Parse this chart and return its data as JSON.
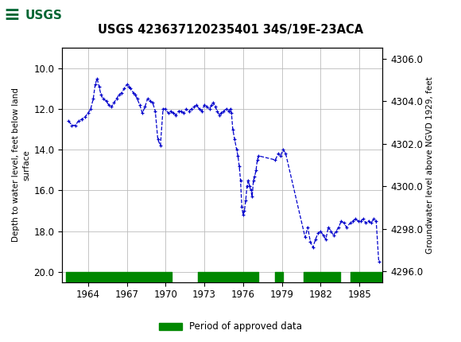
{
  "title": "USGS 423637120235401 34S/19E-23ACA",
  "ylabel_left": "Depth to water level, feet below land\nsurface",
  "ylabel_right": "Groundwater level above NGVD 1929, feet",
  "ylim_left": [
    20.5,
    9.0
  ],
  "ylim_right": [
    4295.5,
    4306.5
  ],
  "yticks_left": [
    10.0,
    12.0,
    14.0,
    16.0,
    18.0,
    20.0
  ],
  "yticks_right": [
    4296.0,
    4298.0,
    4300.0,
    4302.0,
    4304.0,
    4306.0
  ],
  "xlim": [
    1962.0,
    1986.8
  ],
  "xticks": [
    1964,
    1967,
    1970,
    1973,
    1976,
    1979,
    1982,
    1985
  ],
  "line_color": "#0000cc",
  "marker": "+",
  "linestyle": "--",
  "bg_color": "#ffffff",
  "header_color": "#006633",
  "grid_color": "#bbbbbb",
  "approved_color": "#008800",
  "legend_label": "Period of approved data",
  "approved_segments": [
    [
      1962.3,
      1970.5
    ],
    [
      1972.5,
      1977.2
    ],
    [
      1978.5,
      1979.1
    ],
    [
      1980.7,
      1983.5
    ],
    [
      1984.3,
      1986.8
    ]
  ],
  "data_x": [
    1962.5,
    1962.75,
    1963.0,
    1963.25,
    1963.5,
    1963.75,
    1964.0,
    1964.2,
    1964.4,
    1964.55,
    1964.7,
    1964.85,
    1965.0,
    1965.15,
    1965.4,
    1965.6,
    1965.8,
    1966.0,
    1966.2,
    1966.4,
    1966.6,
    1966.8,
    1967.0,
    1967.15,
    1967.3,
    1967.5,
    1967.65,
    1967.8,
    1968.0,
    1968.2,
    1968.4,
    1968.6,
    1968.8,
    1969.0,
    1969.2,
    1969.4,
    1969.6,
    1969.8,
    1970.0,
    1970.2,
    1970.4,
    1970.6,
    1970.8,
    1971.0,
    1971.2,
    1971.4,
    1971.6,
    1971.8,
    1972.0,
    1972.2,
    1972.4,
    1972.6,
    1972.8,
    1973.0,
    1973.2,
    1973.4,
    1973.55,
    1973.7,
    1973.85,
    1974.0,
    1974.15,
    1974.3,
    1974.5,
    1974.7,
    1974.9,
    1975.0,
    1975.1,
    1975.2,
    1975.35,
    1975.5,
    1975.6,
    1975.7,
    1975.8,
    1975.9,
    1976.0,
    1976.1,
    1976.2,
    1976.3,
    1976.4,
    1976.5,
    1976.6,
    1976.7,
    1976.8,
    1976.9,
    1977.0,
    1977.1,
    1977.2,
    1978.5,
    1978.7,
    1978.9,
    1979.1,
    1979.3,
    1980.8,
    1981.0,
    1981.2,
    1981.4,
    1981.6,
    1981.8,
    1982.0,
    1982.2,
    1982.4,
    1982.6,
    1982.8,
    1983.0,
    1983.2,
    1983.4,
    1983.6,
    1983.8,
    1984.0,
    1984.3,
    1984.5,
    1984.7,
    1984.9,
    1985.1,
    1985.3,
    1985.5,
    1985.7,
    1985.9,
    1986.1,
    1986.3,
    1986.5
  ],
  "data_y": [
    12.6,
    12.8,
    12.8,
    12.6,
    12.5,
    12.4,
    12.2,
    12.0,
    11.5,
    10.8,
    10.5,
    10.9,
    11.3,
    11.5,
    11.6,
    11.8,
    11.9,
    11.7,
    11.5,
    11.3,
    11.2,
    11.0,
    10.8,
    10.9,
    11.0,
    11.2,
    11.3,
    11.5,
    11.8,
    12.2,
    11.9,
    11.5,
    11.6,
    11.7,
    12.1,
    13.5,
    13.8,
    12.0,
    12.0,
    12.2,
    12.1,
    12.2,
    12.3,
    12.1,
    12.1,
    12.2,
    12.0,
    12.1,
    12.0,
    11.9,
    11.8,
    12.0,
    12.1,
    11.8,
    11.9,
    12.0,
    11.8,
    11.7,
    11.9,
    12.1,
    12.3,
    12.2,
    12.1,
    12.0,
    12.1,
    12.0,
    12.2,
    13.0,
    13.5,
    14.0,
    14.3,
    14.8,
    15.5,
    16.8,
    17.2,
    17.0,
    16.5,
    15.8,
    15.5,
    15.8,
    16.0,
    16.3,
    15.5,
    15.3,
    15.0,
    14.5,
    14.3,
    14.5,
    14.2,
    14.3,
    14.0,
    14.2,
    18.3,
    17.8,
    18.5,
    18.8,
    18.4,
    18.1,
    18.0,
    18.2,
    18.4,
    17.8,
    18.0,
    18.2,
    18.0,
    17.8,
    17.5,
    17.6,
    17.8,
    17.6,
    17.5,
    17.4,
    17.5,
    17.5,
    17.4,
    17.6,
    17.5,
    17.6,
    17.4,
    17.5,
    19.5
  ]
}
